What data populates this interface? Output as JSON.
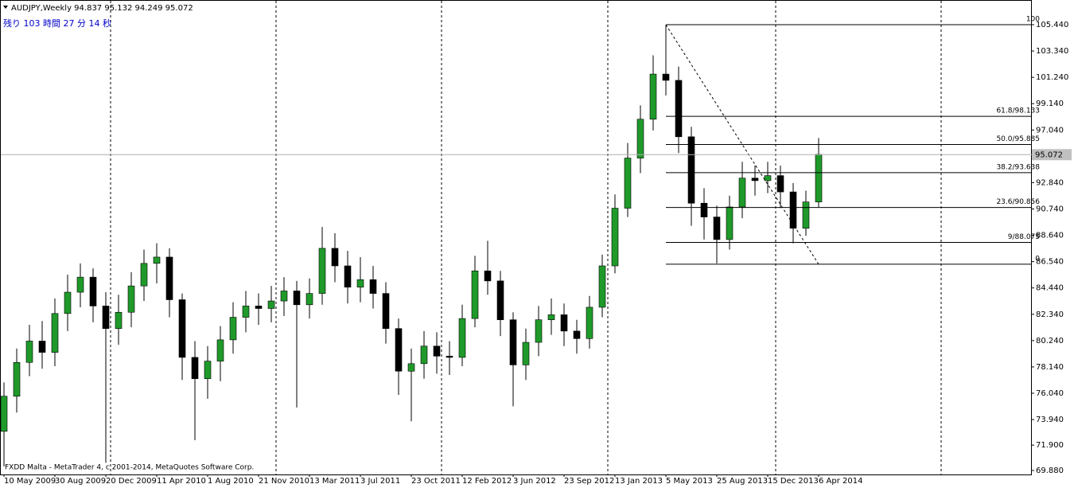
{
  "chart_data": {
    "type": "candlestick",
    "title": "AUDJPY,Weekly  94.837 95.132 94.249 95.072",
    "subtitle": "残り 103 時間 27 分 14 秒",
    "footer": "FXDD Malta - MetaTrader 4, c 2001-2014, MetaQuotes Software Corp.",
    "categories": [
      "10 May 2009",
      null,
      null,
      null,
      "30 Aug 2009",
      null,
      null,
      null,
      "20 Dec 2009",
      null,
      null,
      null,
      "11 Apr 2010",
      null,
      null,
      null,
      "1 Aug 2010",
      null,
      null,
      null,
      "21 Nov 2010",
      null,
      null,
      null,
      "13 Mar 2011",
      null,
      null,
      null,
      "3 Jul 2011",
      null,
      null,
      null,
      "23 Oct 2011",
      null,
      null,
      null,
      "12 Feb 2012",
      null,
      null,
      null,
      "3 Jun 2012",
      null,
      null,
      null,
      "23 Sep 2012",
      null,
      null,
      null,
      "13 Jan 2013",
      null,
      null,
      null,
      "5 May 2013",
      null,
      null,
      null,
      "25 Aug 2013",
      null,
      null,
      null,
      "15 Dec 2013",
      null,
      null,
      null,
      "6 Apr 2014"
    ],
    "open": [
      73.0,
      75.8,
      78.5,
      80.2,
      79.3,
      82.4,
      84.1,
      85.3,
      83.0,
      81.2,
      82.5,
      84.6,
      86.4,
      86.9,
      83.5,
      78.9,
      77.2,
      78.6,
      80.3,
      82.1,
      83.0,
      82.8,
      83.4,
      84.2,
      83.1,
      84.0,
      87.6,
      86.2,
      84.5,
      85.1,
      84.0,
      81.2,
      77.8,
      78.4,
      79.8,
      79.0,
      78.9,
      82.0,
      85.8,
      85.0,
      81.9,
      78.3,
      80.1,
      81.9,
      82.3,
      81.0,
      80.4,
      82.9,
      86.2,
      90.8,
      94.8,
      97.9,
      101.5,
      101.0,
      96.5,
      91.2,
      90.1,
      88.3,
      90.9,
      93.2,
      93.0,
      93.4,
      92.1,
      89.2,
      91.3
    ],
    "high": [
      76.9,
      79.6,
      81.5,
      81.8,
      83.6,
      85.5,
      86.4,
      86.0,
      84.1,
      83.9,
      85.7,
      87.5,
      88.0,
      87.6,
      84.0,
      80.2,
      79.8,
      81.4,
      83.3,
      84.2,
      84.0,
      84.6,
      85.3,
      85.0,
      85.2,
      89.3,
      88.8,
      87.4,
      86.9,
      86.2,
      84.9,
      82.0,
      79.6,
      81.0,
      80.9,
      80.2,
      83.1,
      87.0,
      88.2,
      85.8,
      82.5,
      81.2,
      83.0,
      83.6,
      83.2,
      81.9,
      83.8,
      87.1,
      91.9,
      96.0,
      99.0,
      103.0,
      105.4,
      102.1,
      97.3,
      92.4,
      91.0,
      91.8,
      94.5,
      94.2,
      94.5,
      94.2,
      92.8,
      92.2,
      96.4
    ],
    "low": [
      70.2,
      74.5,
      77.4,
      78.0,
      78.2,
      81.0,
      82.9,
      81.7,
      70.5,
      79.9,
      81.3,
      83.4,
      84.8,
      82.1,
      77.1,
      72.3,
      75.6,
      77.0,
      79.2,
      80.9,
      81.5,
      81.7,
      82.2,
      74.9,
      82.0,
      83.1,
      84.9,
      83.2,
      83.3,
      82.8,
      80.0,
      75.9,
      73.8,
      77.2,
      77.6,
      77.5,
      78.2,
      81.3,
      83.9,
      80.6,
      75.0,
      77.1,
      79.0,
      80.7,
      79.8,
      79.2,
      79.6,
      82.1,
      85.6,
      90.1,
      93.6,
      97.0,
      99.8,
      95.2,
      89.4,
      88.3,
      86.4,
      87.5,
      90.0,
      91.8,
      92.0,
      90.8,
      88.0,
      88.6,
      90.9
    ],
    "close": [
      75.8,
      78.5,
      80.2,
      79.3,
      82.4,
      84.1,
      85.3,
      83.0,
      81.2,
      82.5,
      84.6,
      86.4,
      86.9,
      83.5,
      78.9,
      77.2,
      78.6,
      80.3,
      82.1,
      83.0,
      82.8,
      83.4,
      84.2,
      83.1,
      84.0,
      87.6,
      86.2,
      84.5,
      85.1,
      84.0,
      81.2,
      77.8,
      78.4,
      79.8,
      79.0,
      78.9,
      82.0,
      85.8,
      85.0,
      81.9,
      78.3,
      80.1,
      81.9,
      82.3,
      81.0,
      80.4,
      82.9,
      86.2,
      90.8,
      94.8,
      97.9,
      101.5,
      101.0,
      96.5,
      91.2,
      90.1,
      88.3,
      90.9,
      93.2,
      93.0,
      93.4,
      92.1,
      89.2,
      91.3,
      95.1
    ],
    "up_color": "#1f9a2a",
    "down_color": "#000000",
    "ylim": [
      69.56,
      107.41
    ],
    "yticks": [
      {
        "value": 69.88,
        "label": "69.880"
      },
      {
        "value": 71.9,
        "label": "71.900"
      },
      {
        "value": 73.94,
        "label": "73.940"
      },
      {
        "value": 76.04,
        "label": "76.040"
      },
      {
        "value": 78.14,
        "label": "78.140"
      },
      {
        "value": 80.24,
        "label": "80.240"
      },
      {
        "value": 82.34,
        "label": "82.340"
      },
      {
        "value": 84.44,
        "label": "84.440"
      },
      {
        "value": 86.54,
        "label": "86.540"
      },
      {
        "value": 88.64,
        "label": "88.640"
      },
      {
        "value": 90.74,
        "label": "90.740"
      },
      {
        "value": 92.84,
        "label": "92.840"
      },
      {
        "value": 97.04,
        "label": "97.040"
      },
      {
        "value": 99.14,
        "label": "99.140"
      },
      {
        "value": 101.24,
        "label": "101.240"
      },
      {
        "value": 103.34,
        "label": "103.340"
      },
      {
        "value": 105.44,
        "label": "105.440"
      }
    ],
    "current_price": 95.072,
    "fibo_levels": [
      {
        "value": 105.44,
        "label": "100"
      },
      {
        "value": 98.133,
        "label": "61.8/98.133"
      },
      {
        "value": 95.885,
        "label": "50.0/95.885"
      },
      {
        "value": 93.638,
        "label": "38.2/93.638"
      },
      {
        "value": 90.856,
        "label": "23.6/90.856"
      },
      {
        "value": 88.075,
        "label": "9/88.075"
      },
      {
        "value": 86.33,
        "label": "0"
      }
    ]
  }
}
